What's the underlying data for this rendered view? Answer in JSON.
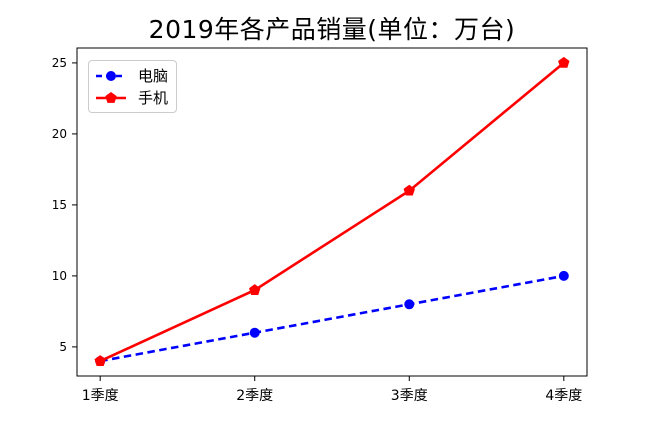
{
  "chart_data": {
    "type": "line",
    "title": "2019年各产品销量(单位：万台)",
    "categories": [
      "1季度",
      "2季度",
      "3季度",
      "4季度"
    ],
    "series": [
      {
        "name": "电脑",
        "values": [
          4,
          6,
          8,
          10
        ],
        "color": "#0000ff",
        "line_style": "dashed",
        "marker": "circle"
      },
      {
        "name": "手机",
        "values": [
          4,
          9,
          16,
          25
        ],
        "color": "#ff0000",
        "line_style": "solid",
        "marker": "pentagon"
      }
    ],
    "yticks": [
      5,
      10,
      15,
      20,
      25
    ],
    "ylim": [
      2.95,
      26.05
    ],
    "xlim": [
      0.85,
      4.15
    ],
    "legend_position": "upper-left",
    "grid": false,
    "axis_color": "#000000",
    "text_color": "#000000",
    "background": "#ffffff"
  }
}
